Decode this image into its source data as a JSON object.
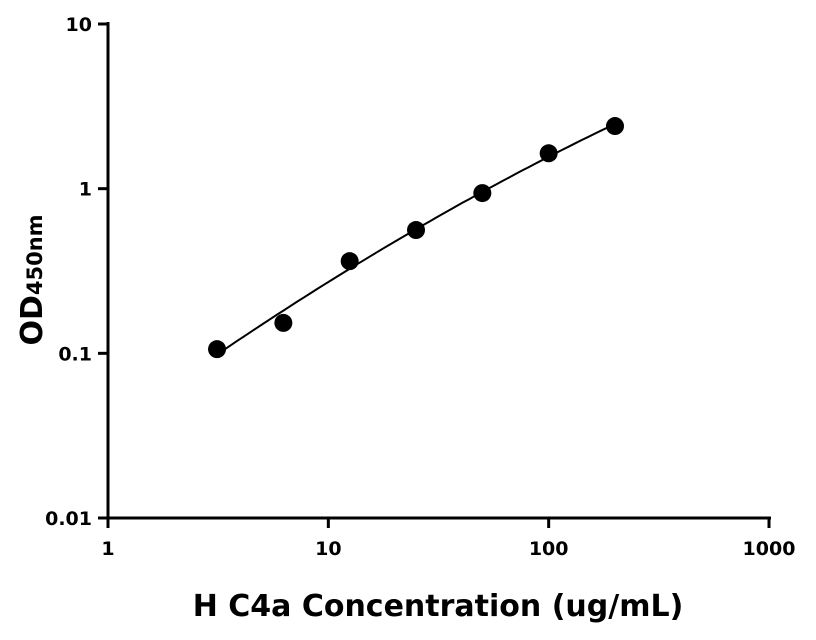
{
  "chart_data": {
    "type": "scatter",
    "title": "",
    "xlabel": "H C4a Concentration (ug/mL)",
    "ylabel_main": "OD",
    "ylabel_sub": "450nm",
    "x_scale": "log",
    "y_scale": "log",
    "xlim": [
      1,
      1000
    ],
    "ylim": [
      0.01,
      10
    ],
    "x_ticks": [
      "1",
      "10",
      "100",
      "1000"
    ],
    "y_ticks": [
      "0.01",
      "0.1",
      "1",
      "10"
    ],
    "grid": false,
    "legend": "none",
    "fit_curve": true,
    "marker_color": "#000000",
    "x": [
      3.125,
      6.25,
      12.5,
      25,
      50,
      100,
      200
    ],
    "y": [
      0.106,
      0.153,
      0.363,
      0.561,
      0.94,
      1.64,
      2.4
    ]
  }
}
